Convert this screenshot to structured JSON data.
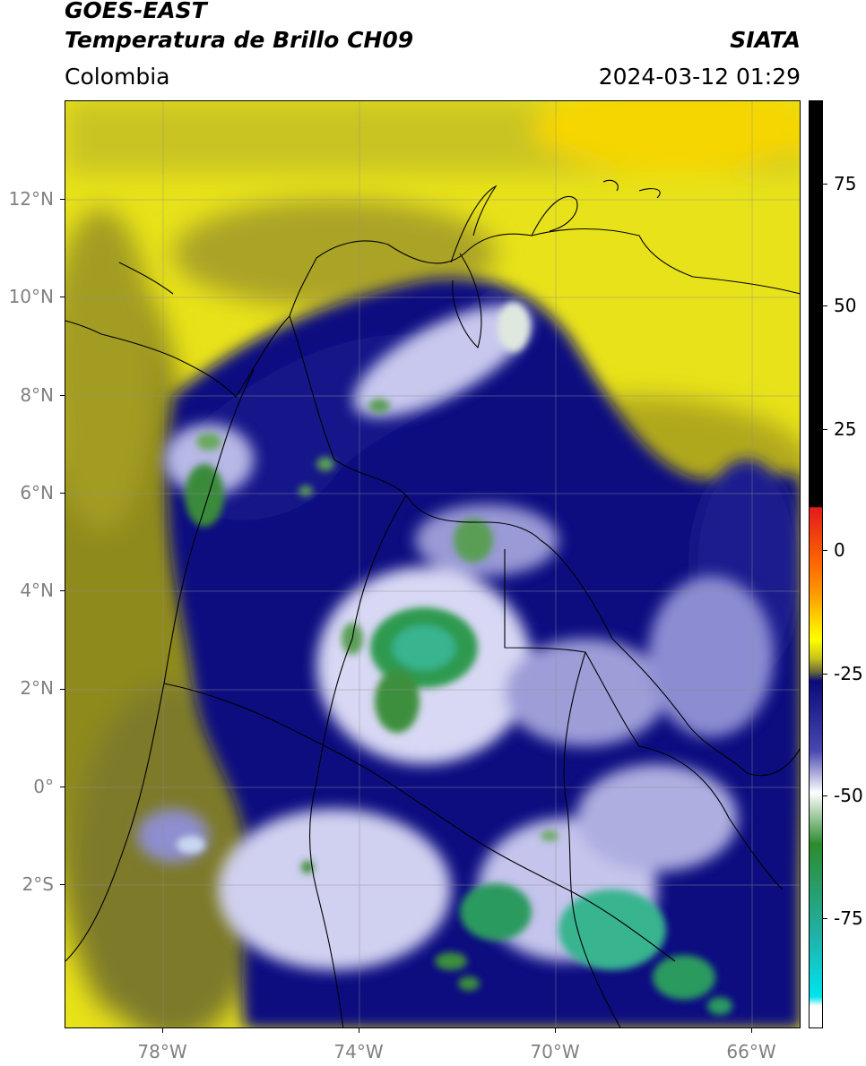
{
  "header": {
    "satellite": "GOES-EAST",
    "product": "Temperatura de Brillo CH09",
    "region": "Colombia",
    "organization": "SIATA",
    "datetime": "2024-03-12 01:29"
  },
  "map": {
    "lat_labels": [
      "12°N",
      "10°N",
      "8°N",
      "6°N",
      "4°N",
      "2°N",
      "0°",
      "2°S"
    ],
    "lon_labels": [
      "78°W",
      "74°W",
      "70°W",
      "66°W"
    ],
    "extent": {
      "lon_min": -80,
      "lon_max": -65,
      "lat_min": -5,
      "lat_max": 14
    },
    "graticule": true,
    "features": [
      {
        "name": "Lago de Maracaibo",
        "type": "lake"
      },
      {
        "name": "convective cloud cores",
        "color_range": "green/teal (-60 to -80 °C)"
      }
    ]
  },
  "colorbar": {
    "tick_labels": [
      "75",
      "50",
      "25",
      "0",
      "-25",
      "-50",
      "-75"
    ],
    "tick_values": [
      75,
      50,
      25,
      0,
      -25,
      -50,
      -75
    ],
    "range": [
      -95,
      90
    ],
    "colors": {
      "warm_black": "#000000",
      "red": "#e31a1c",
      "orange": "#ff8c00",
      "yellow": "#ffff00",
      "olive": "#8b8b1a",
      "navy": "#0a0a7a",
      "white": "#ffffff",
      "green": "#2e8b2e",
      "teal": "#20b2aa",
      "cyan": "#00e5ee"
    }
  }
}
